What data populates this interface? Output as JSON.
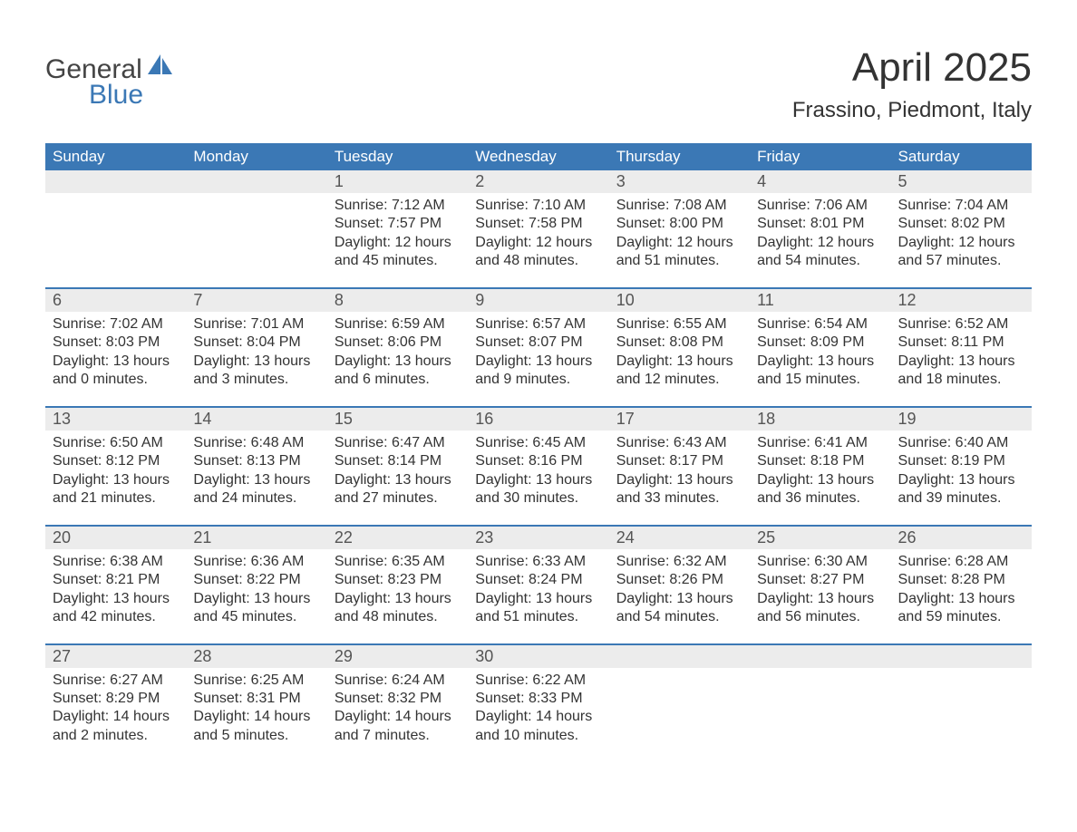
{
  "logo": {
    "text1": "General",
    "text2": "Blue"
  },
  "colors": {
    "brand_blue": "#3b78b5",
    "header_text": "#ffffff",
    "daynum_bg": "#ececec",
    "body_text": "#333333",
    "page_bg": "#ffffff"
  },
  "title": "April 2025",
  "subtitle": "Frassino, Piedmont, Italy",
  "weekdays": [
    "Sunday",
    "Monday",
    "Tuesday",
    "Wednesday",
    "Thursday",
    "Friday",
    "Saturday"
  ],
  "weeks": [
    {
      "days": [
        {
          "num": "",
          "sunrise": "",
          "sunset": "",
          "daylight": ""
        },
        {
          "num": "",
          "sunrise": "",
          "sunset": "",
          "daylight": ""
        },
        {
          "num": "1",
          "sunrise": "Sunrise: 7:12 AM",
          "sunset": "Sunset: 7:57 PM",
          "daylight": "Daylight: 12 hours and 45 minutes."
        },
        {
          "num": "2",
          "sunrise": "Sunrise: 7:10 AM",
          "sunset": "Sunset: 7:58 PM",
          "daylight": "Daylight: 12 hours and 48 minutes."
        },
        {
          "num": "3",
          "sunrise": "Sunrise: 7:08 AM",
          "sunset": "Sunset: 8:00 PM",
          "daylight": "Daylight: 12 hours and 51 minutes."
        },
        {
          "num": "4",
          "sunrise": "Sunrise: 7:06 AM",
          "sunset": "Sunset: 8:01 PM",
          "daylight": "Daylight: 12 hours and 54 minutes."
        },
        {
          "num": "5",
          "sunrise": "Sunrise: 7:04 AM",
          "sunset": "Sunset: 8:02 PM",
          "daylight": "Daylight: 12 hours and 57 minutes."
        }
      ]
    },
    {
      "days": [
        {
          "num": "6",
          "sunrise": "Sunrise: 7:02 AM",
          "sunset": "Sunset: 8:03 PM",
          "daylight": "Daylight: 13 hours and 0 minutes."
        },
        {
          "num": "7",
          "sunrise": "Sunrise: 7:01 AM",
          "sunset": "Sunset: 8:04 PM",
          "daylight": "Daylight: 13 hours and 3 minutes."
        },
        {
          "num": "8",
          "sunrise": "Sunrise: 6:59 AM",
          "sunset": "Sunset: 8:06 PM",
          "daylight": "Daylight: 13 hours and 6 minutes."
        },
        {
          "num": "9",
          "sunrise": "Sunrise: 6:57 AM",
          "sunset": "Sunset: 8:07 PM",
          "daylight": "Daylight: 13 hours and 9 minutes."
        },
        {
          "num": "10",
          "sunrise": "Sunrise: 6:55 AM",
          "sunset": "Sunset: 8:08 PM",
          "daylight": "Daylight: 13 hours and 12 minutes."
        },
        {
          "num": "11",
          "sunrise": "Sunrise: 6:54 AM",
          "sunset": "Sunset: 8:09 PM",
          "daylight": "Daylight: 13 hours and 15 minutes."
        },
        {
          "num": "12",
          "sunrise": "Sunrise: 6:52 AM",
          "sunset": "Sunset: 8:11 PM",
          "daylight": "Daylight: 13 hours and 18 minutes."
        }
      ]
    },
    {
      "days": [
        {
          "num": "13",
          "sunrise": "Sunrise: 6:50 AM",
          "sunset": "Sunset: 8:12 PM",
          "daylight": "Daylight: 13 hours and 21 minutes."
        },
        {
          "num": "14",
          "sunrise": "Sunrise: 6:48 AM",
          "sunset": "Sunset: 8:13 PM",
          "daylight": "Daylight: 13 hours and 24 minutes."
        },
        {
          "num": "15",
          "sunrise": "Sunrise: 6:47 AM",
          "sunset": "Sunset: 8:14 PM",
          "daylight": "Daylight: 13 hours and 27 minutes."
        },
        {
          "num": "16",
          "sunrise": "Sunrise: 6:45 AM",
          "sunset": "Sunset: 8:16 PM",
          "daylight": "Daylight: 13 hours and 30 minutes."
        },
        {
          "num": "17",
          "sunrise": "Sunrise: 6:43 AM",
          "sunset": "Sunset: 8:17 PM",
          "daylight": "Daylight: 13 hours and 33 minutes."
        },
        {
          "num": "18",
          "sunrise": "Sunrise: 6:41 AM",
          "sunset": "Sunset: 8:18 PM",
          "daylight": "Daylight: 13 hours and 36 minutes."
        },
        {
          "num": "19",
          "sunrise": "Sunrise: 6:40 AM",
          "sunset": "Sunset: 8:19 PM",
          "daylight": "Daylight: 13 hours and 39 minutes."
        }
      ]
    },
    {
      "days": [
        {
          "num": "20",
          "sunrise": "Sunrise: 6:38 AM",
          "sunset": "Sunset: 8:21 PM",
          "daylight": "Daylight: 13 hours and 42 minutes."
        },
        {
          "num": "21",
          "sunrise": "Sunrise: 6:36 AM",
          "sunset": "Sunset: 8:22 PM",
          "daylight": "Daylight: 13 hours and 45 minutes."
        },
        {
          "num": "22",
          "sunrise": "Sunrise: 6:35 AM",
          "sunset": "Sunset: 8:23 PM",
          "daylight": "Daylight: 13 hours and 48 minutes."
        },
        {
          "num": "23",
          "sunrise": "Sunrise: 6:33 AM",
          "sunset": "Sunset: 8:24 PM",
          "daylight": "Daylight: 13 hours and 51 minutes."
        },
        {
          "num": "24",
          "sunrise": "Sunrise: 6:32 AM",
          "sunset": "Sunset: 8:26 PM",
          "daylight": "Daylight: 13 hours and 54 minutes."
        },
        {
          "num": "25",
          "sunrise": "Sunrise: 6:30 AM",
          "sunset": "Sunset: 8:27 PM",
          "daylight": "Daylight: 13 hours and 56 minutes."
        },
        {
          "num": "26",
          "sunrise": "Sunrise: 6:28 AM",
          "sunset": "Sunset: 8:28 PM",
          "daylight": "Daylight: 13 hours and 59 minutes."
        }
      ]
    },
    {
      "days": [
        {
          "num": "27",
          "sunrise": "Sunrise: 6:27 AM",
          "sunset": "Sunset: 8:29 PM",
          "daylight": "Daylight: 14 hours and 2 minutes."
        },
        {
          "num": "28",
          "sunrise": "Sunrise: 6:25 AM",
          "sunset": "Sunset: 8:31 PM",
          "daylight": "Daylight: 14 hours and 5 minutes."
        },
        {
          "num": "29",
          "sunrise": "Sunrise: 6:24 AM",
          "sunset": "Sunset: 8:32 PM",
          "daylight": "Daylight: 14 hours and 7 minutes."
        },
        {
          "num": "30",
          "sunrise": "Sunrise: 6:22 AM",
          "sunset": "Sunset: 8:33 PM",
          "daylight": "Daylight: 14 hours and 10 minutes."
        },
        {
          "num": "",
          "sunrise": "",
          "sunset": "",
          "daylight": ""
        },
        {
          "num": "",
          "sunrise": "",
          "sunset": "",
          "daylight": ""
        },
        {
          "num": "",
          "sunrise": "",
          "sunset": "",
          "daylight": ""
        }
      ]
    }
  ]
}
